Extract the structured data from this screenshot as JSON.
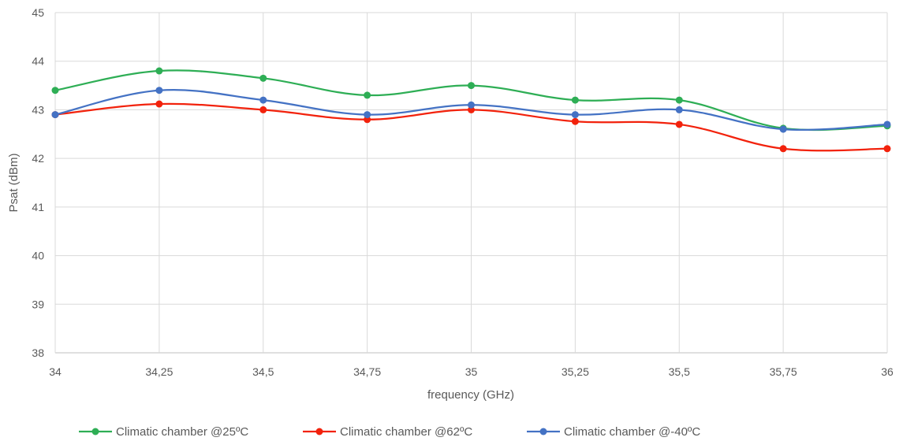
{
  "chart_data": {
    "type": "line",
    "title": "",
    "xlabel": "frequency (GHz)",
    "ylabel": "Psat (dBm)",
    "x": [
      34,
      34.25,
      34.5,
      34.75,
      35,
      35.25,
      35.5,
      35.75,
      36
    ],
    "x_tick_labels": [
      "34",
      "34,25",
      "34,5",
      "34,75",
      "35",
      "35,25",
      "35,5",
      "35,75",
      "36"
    ],
    "xlim": [
      34,
      36
    ],
    "ylim": [
      38,
      45
    ],
    "y_ticks": [
      "38",
      "39",
      "40",
      "41",
      "42",
      "43",
      "44",
      "45"
    ],
    "grid": true,
    "smooth": true,
    "legend_position": "bottom",
    "series": [
      {
        "name": "Climatic chamber @25ºC",
        "color": "#2eae55",
        "values": [
          43.4,
          43.8,
          43.65,
          43.3,
          43.5,
          43.2,
          43.2,
          42.62,
          42.67
        ]
      },
      {
        "name": "Climatic chamber @62ºC",
        "color": "#f2220c",
        "values": [
          42.9,
          43.12,
          43.0,
          42.8,
          43.0,
          42.76,
          42.7,
          42.2,
          42.2
        ]
      },
      {
        "name": "Climatic chamber @-40ºC",
        "color": "#4472c4",
        "values": [
          42.9,
          43.4,
          43.2,
          42.9,
          43.1,
          42.9,
          43.0,
          42.6,
          42.7
        ]
      }
    ]
  }
}
